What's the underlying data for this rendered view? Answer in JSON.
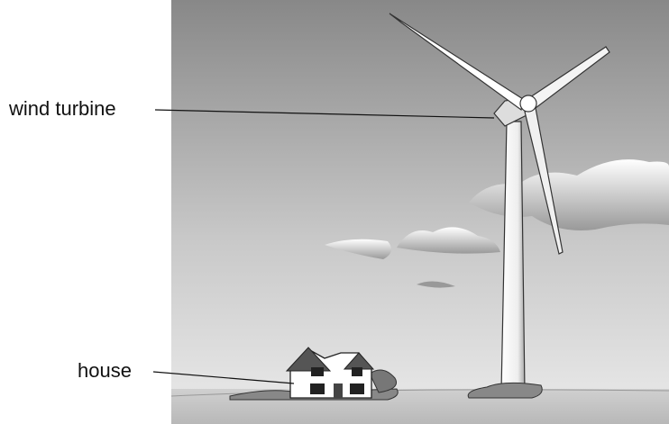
{
  "labels": [
    {
      "text": "wind turbine"
    },
    {
      "text": "house"
    }
  ]
}
